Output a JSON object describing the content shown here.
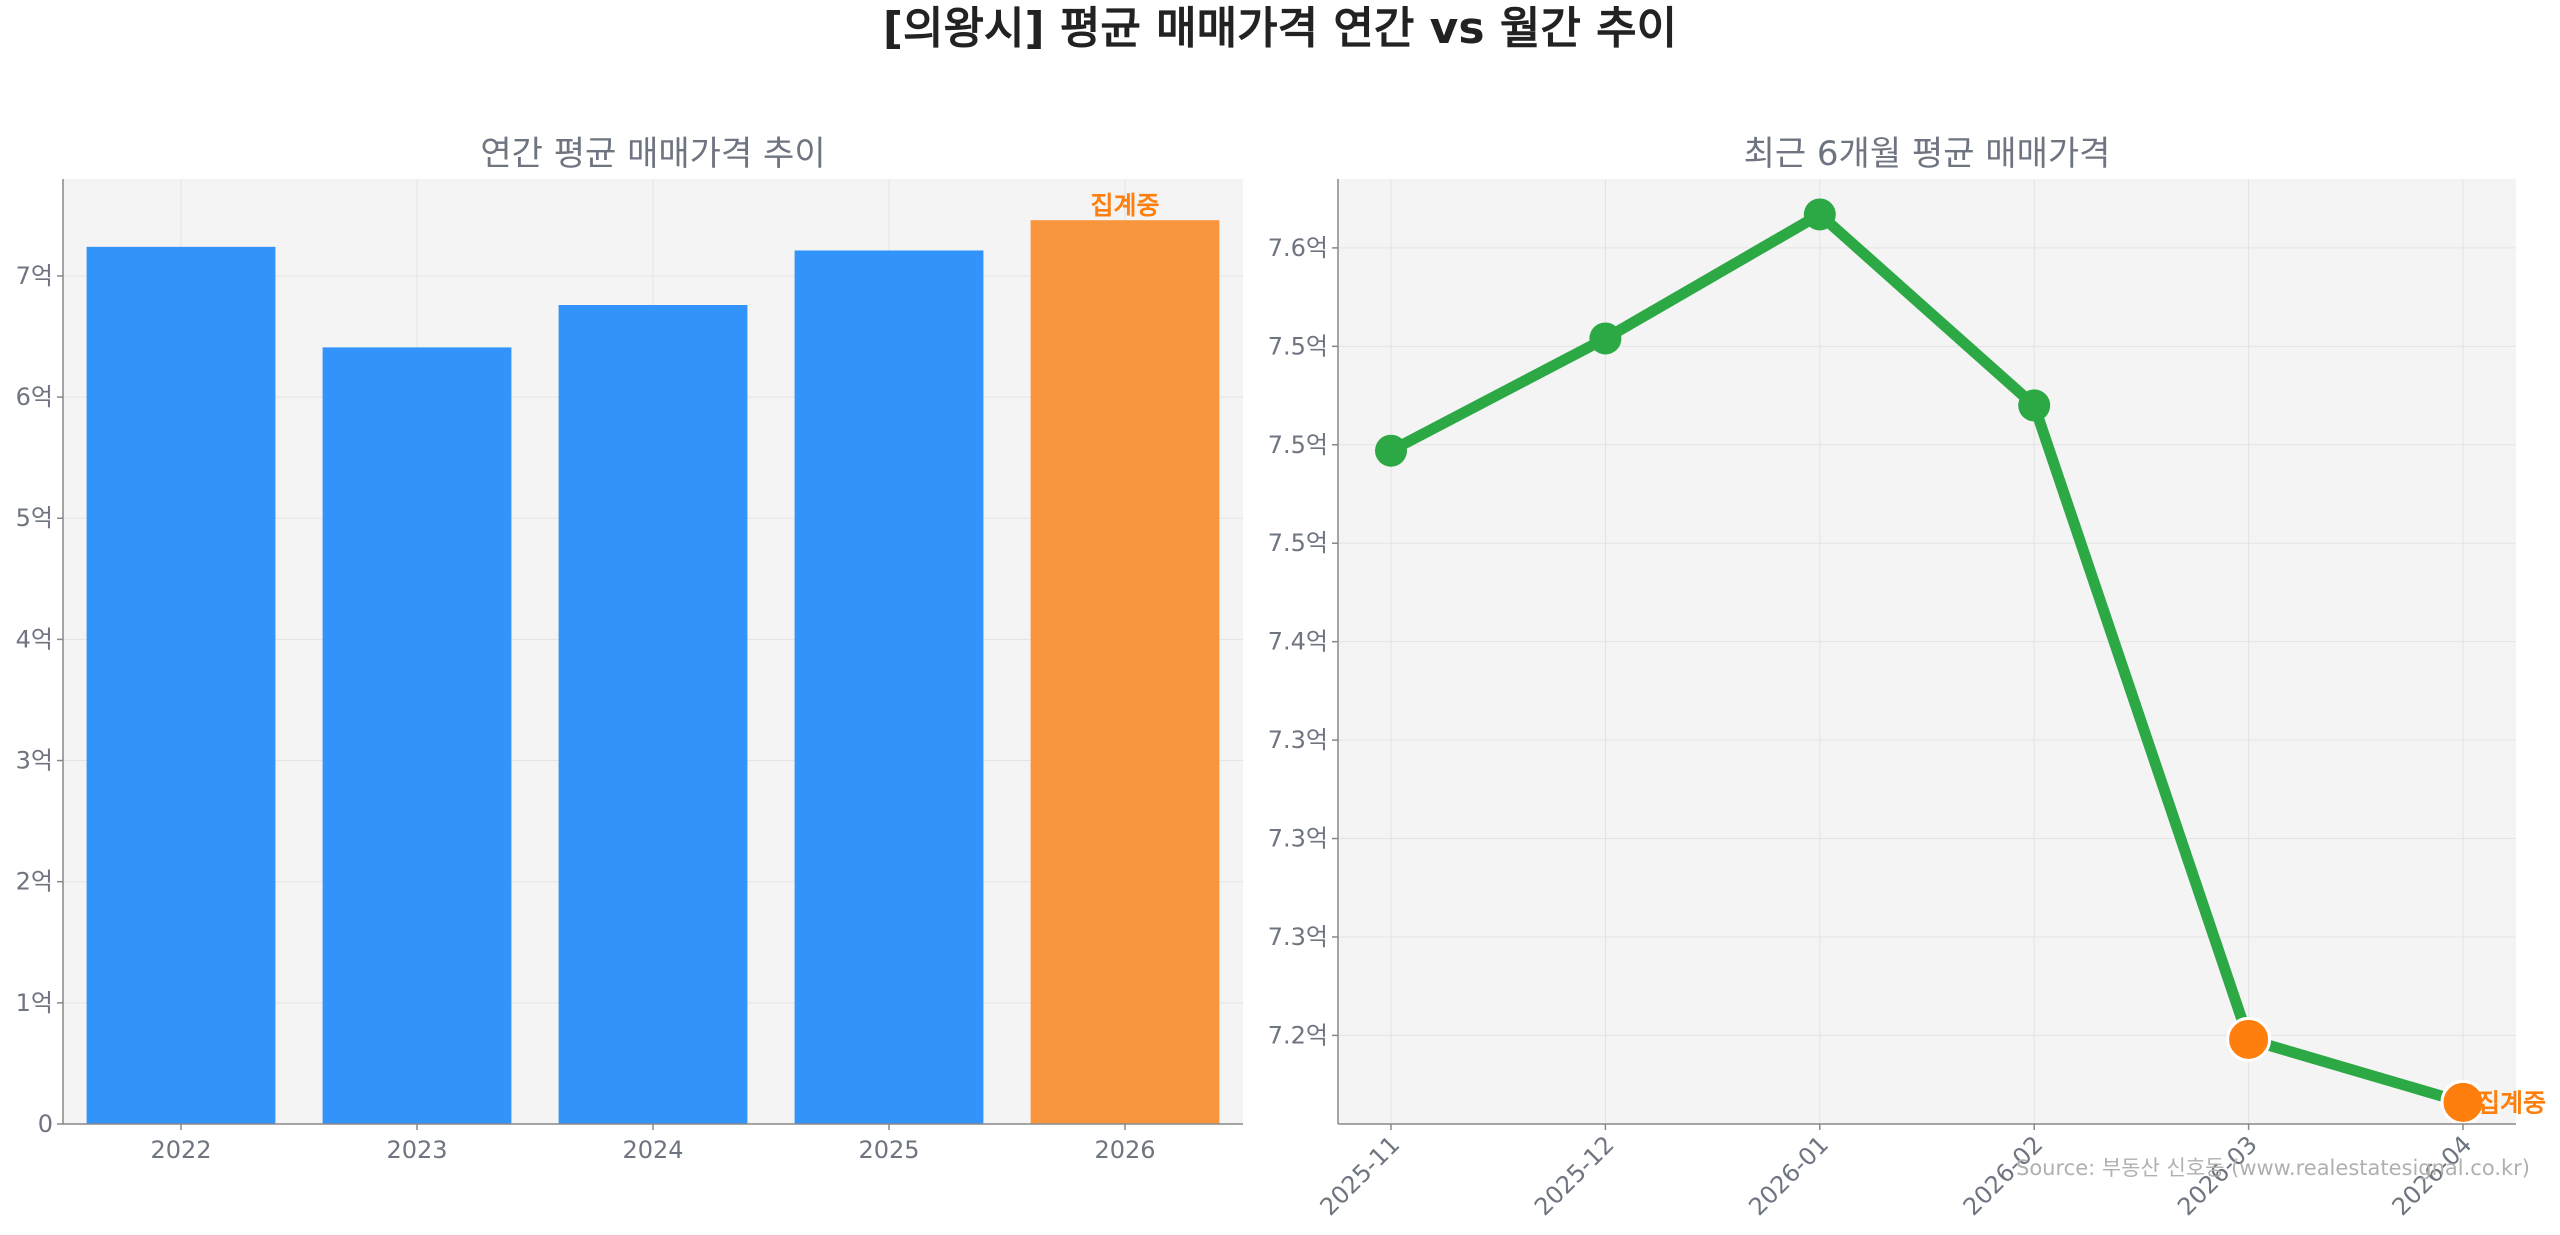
{
  "title": "[의왕시] 평균 매매가격 연간 vs 월간 추이",
  "source": "Source: 부동산 신호등 (www.realestatesignal.co.kr)",
  "colors": {
    "bar": "#3293fb",
    "bar_partial": "#f9963d",
    "line": "#2ca845",
    "marker_partial": "#ff7f0e",
    "panel_bg": "#f4f4f4"
  },
  "chart_data": [
    {
      "type": "bar",
      "title": "연간 평균 매매가격 추이",
      "categories": [
        "2022",
        "2023",
        "2024",
        "2025",
        "2026"
      ],
      "values": [
        7.24,
        6.41,
        6.76,
        7.21,
        7.46
      ],
      "unit": "억",
      "partial_index": 4,
      "partial_label": "집계중",
      "ylim": [
        0,
        7.8
      ],
      "yticks": [
        0,
        1,
        2,
        3,
        4,
        5,
        6,
        7
      ],
      "ytick_labels": [
        "0",
        "1억",
        "2억",
        "3억",
        "4억",
        "5억",
        "6억",
        "7억"
      ],
      "grid": true
    },
    {
      "type": "line",
      "title": "최근 6개월 평균 매매가격",
      "categories": [
        "2025-11",
        "2025-12",
        "2026-01",
        "2026-02",
        "2026-03",
        "2026-04"
      ],
      "values": [
        7.497,
        7.554,
        7.617,
        7.52,
        7.198,
        7.166
      ],
      "unit": "억",
      "partial_from_index": 4,
      "partial_label": "집계중",
      "ylim": [
        7.155,
        7.635
      ],
      "yticks": [
        7.2,
        7.25,
        7.3,
        7.35,
        7.4,
        7.45,
        7.5,
        7.55,
        7.6
      ],
      "ytick_labels": [
        "7.2억",
        "7.3억",
        "7.3억",
        "7.3억",
        "7.4억",
        "7.5억",
        "7.5억",
        "7.5억",
        "7.6억"
      ],
      "grid": true
    }
  ]
}
